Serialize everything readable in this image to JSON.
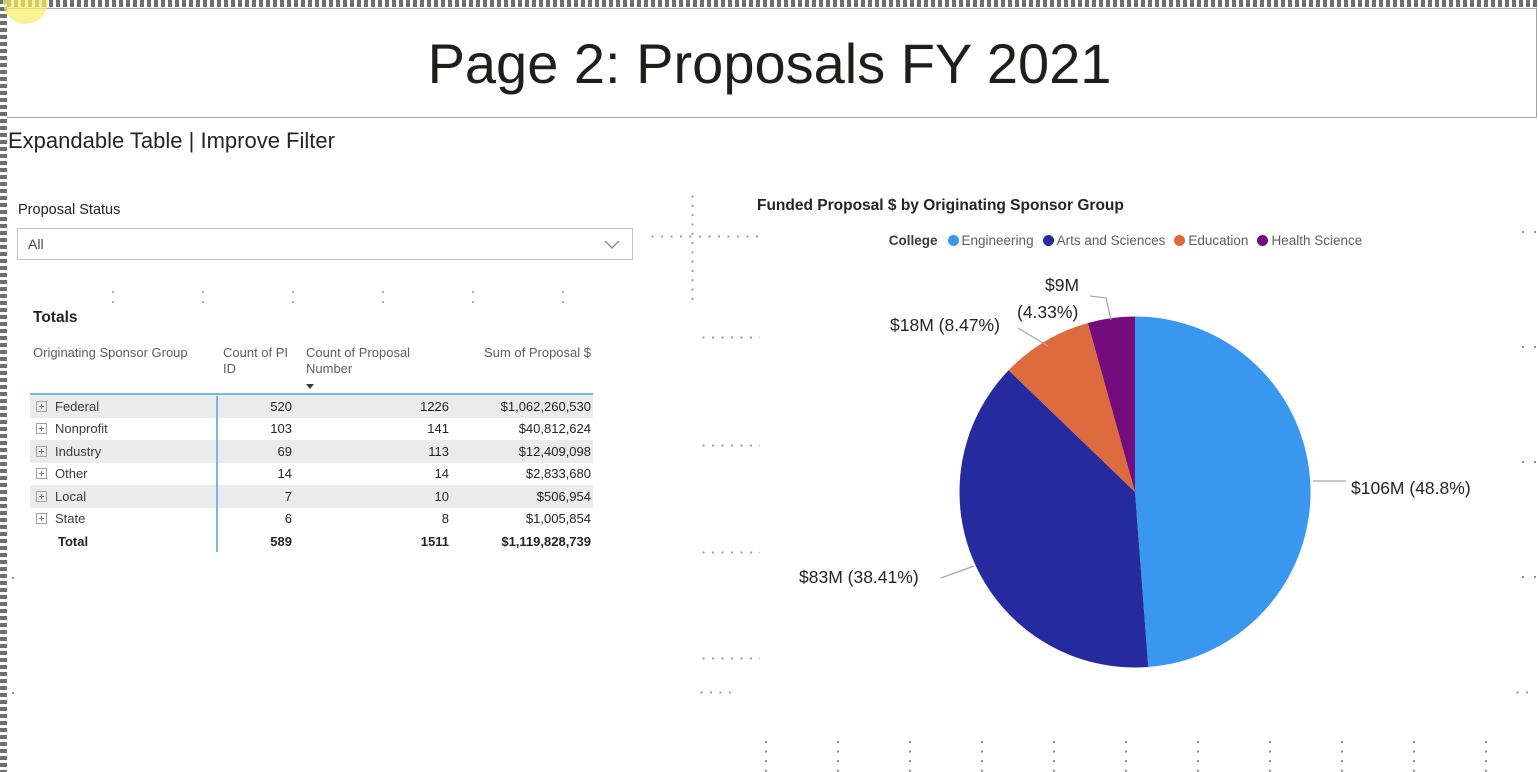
{
  "page": {
    "title": "Page 2: Proposals FY 2021",
    "subtitle": "Expandable Table | Improve Filter"
  },
  "slicer": {
    "label": "Proposal Status",
    "value": "All"
  },
  "table": {
    "title": "Totals",
    "columns": [
      "Originating Sponsor Group",
      "Count of PI ID",
      "Count of Proposal Number",
      "Sum of Proposal $"
    ],
    "rows": [
      {
        "group": "Federal",
        "pi": "520",
        "proposals": "1226",
        "sum": "$1,062,260,530"
      },
      {
        "group": "Nonprofit",
        "pi": "103",
        "proposals": "141",
        "sum": "$40,812,624"
      },
      {
        "group": "Industry",
        "pi": "69",
        "proposals": "113",
        "sum": "$12,409,098"
      },
      {
        "group": "Other",
        "pi": "14",
        "proposals": "14",
        "sum": "$2,833,680"
      },
      {
        "group": "Local",
        "pi": "7",
        "proposals": "10",
        "sum": "$506,954"
      },
      {
        "group": "State",
        "pi": "6",
        "proposals": "8",
        "sum": "$1,005,854"
      }
    ],
    "total": {
      "group": "Total",
      "pi": "589",
      "proposals": "1511",
      "sum": "$1,119,828,739"
    },
    "accent_line_color": "#75B8E8"
  },
  "chart_data": {
    "type": "pie",
    "title": "Funded Proposal $ by Originating Sponsor Group",
    "legend_title": "College",
    "legend_position": "top",
    "slices": [
      {
        "label": "Engineering",
        "value_millions": 106,
        "pct": 48.8,
        "display": "$106M (48.8%)",
        "color": "#3A97F0"
      },
      {
        "label": "Arts and Sciences",
        "value_millions": 83,
        "pct": 38.41,
        "display": "$83M (38.41%)",
        "color": "#252A9E"
      },
      {
        "label": "Education",
        "value_millions": 18,
        "pct": 8.47,
        "display": "$18M (8.47%)",
        "color": "#DD6B3D"
      },
      {
        "label": "Health Science",
        "value_millions": 9,
        "pct": 4.33,
        "display": "$9M (4.33%)",
        "display_line1": "$9M",
        "display_line2": "(4.33%)"
      }
    ],
    "health_science_color": "#740C7E"
  },
  "annotation": {
    "highlight_color": "rgba(246,239,110,0.72)"
  }
}
